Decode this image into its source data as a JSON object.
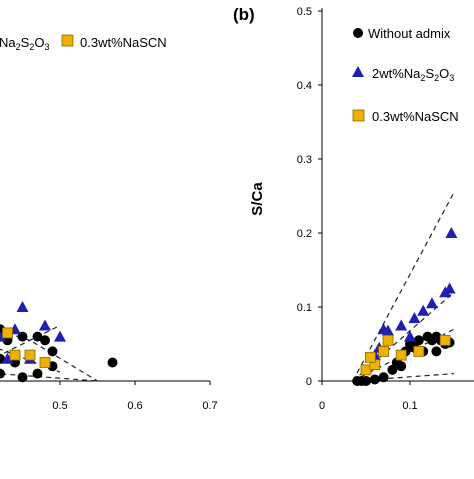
{
  "chart_data": [
    {
      "type": "scatter",
      "panel": "left (partially visible)",
      "title": "",
      "xlabel": "",
      "ylabel": "",
      "xlim": [
        0.35,
        0.7
      ],
      "ylim": [
        0,
        0.5
      ],
      "x_ticks": [
        "0.5",
        "0.6",
        "0.7"
      ],
      "x_tick_values": [
        0.5,
        0.6,
        0.7
      ],
      "legend": {
        "placement": "top",
        "entries": [
          "Na2S2O3",
          "0.3wt%NaSCN"
        ]
      },
      "series": [
        {
          "name": "Without admixture",
          "color": "#000000",
          "marker": "circle",
          "points": [
            [
              0.37,
              0.085
            ],
            [
              0.39,
              0.08
            ],
            [
              0.4,
              0.07
            ],
            [
              0.42,
              0.07
            ],
            [
              0.43,
              0.055
            ],
            [
              0.45,
              0.06
            ],
            [
              0.47,
              0.06
            ],
            [
              0.48,
              0.055
            ],
            [
              0.49,
              0.04
            ],
            [
              0.46,
              0.035
            ],
            [
              0.44,
              0.025
            ],
            [
              0.42,
              0.03
            ],
            [
              0.4,
              0.03
            ],
            [
              0.41,
              0.02
            ],
            [
              0.38,
              0.015
            ],
            [
              0.39,
              0.01
            ],
            [
              0.42,
              0.01
            ],
            [
              0.45,
              0.005
            ],
            [
              0.47,
              0.01
            ],
            [
              0.49,
              0.02
            ],
            [
              0.57,
              0.025
            ],
            [
              0.4,
              0.02
            ]
          ]
        },
        {
          "name": "2wt%Na2S2O3",
          "color": "#1f1fb4",
          "marker": "triangle",
          "points": [
            [
              0.45,
              0.1
            ],
            [
              0.48,
              0.075
            ],
            [
              0.44,
              0.07
            ],
            [
              0.5,
              0.06
            ],
            [
              0.42,
              0.06
            ],
            [
              0.37,
              0.065
            ],
            [
              0.39,
              0.045
            ],
            [
              0.43,
              0.03
            ],
            [
              0.46,
              0.03
            ],
            [
              0.38,
              0.03
            ],
            [
              0.41,
              0.045
            ],
            [
              0.36,
              0.075
            ]
          ]
        },
        {
          "name": "0.3wt%NaSCN",
          "color": "#f0b000",
          "marker": "square",
          "points": [
            [
              0.4,
              0.115
            ],
            [
              0.43,
              0.065
            ],
            [
              0.48,
              0.025
            ],
            [
              0.46,
              0.035
            ],
            [
              0.4,
              0.015
            ],
            [
              0.44,
              0.035
            ],
            [
              0.36,
              0.08
            ]
          ]
        }
      ],
      "envelopes": [
        [
          [
            0.35,
            0.09
          ],
          [
            0.46,
            0.055
          ],
          [
            0.55,
            0.0
          ]
        ],
        [
          [
            0.35,
            0.07
          ],
          [
            0.5,
            0.012
          ]
        ],
        [
          [
            0.35,
            0.015
          ],
          [
            0.55,
            0.0
          ]
        ],
        [
          [
            0.35,
            0.0
          ],
          [
            0.5,
            0.075
          ]
        ]
      ]
    },
    {
      "type": "scatter",
      "panel_label": "(b)",
      "title": "",
      "xlabel": "",
      "ylabel": "S/Ca",
      "xlim": [
        0,
        0.15
      ],
      "ylim": [
        0,
        0.5
      ],
      "x_ticks": [
        "0",
        "0.1"
      ],
      "x_tick_values": [
        0,
        0.1
      ],
      "y_ticks": [
        "0",
        "0.1",
        "0.2",
        "0.3",
        "0.4",
        "0.5"
      ],
      "y_tick_values": [
        0,
        0.1,
        0.2,
        0.3,
        0.4,
        0.5
      ],
      "legend": {
        "placement": "top-right",
        "entries": [
          "Without admix",
          "2wt%Na2S2O3",
          "0.3wt%NaSCN"
        ]
      },
      "series": [
        {
          "name": "Without admixture",
          "color": "#000000",
          "marker": "circle",
          "points": [
            [
              0.04,
              0.0
            ],
            [
              0.045,
              0.0
            ],
            [
              0.05,
              0.0
            ],
            [
              0.06,
              0.002
            ],
            [
              0.07,
              0.005
            ],
            [
              0.08,
              0.015
            ],
            [
              0.085,
              0.025
            ],
            [
              0.09,
              0.02
            ],
            [
              0.095,
              0.04
            ],
            [
              0.1,
              0.05
            ],
            [
              0.105,
              0.045
            ],
            [
              0.11,
              0.055
            ],
            [
              0.115,
              0.04
            ],
            [
              0.12,
              0.06
            ],
            [
              0.125,
              0.055
            ],
            [
              0.13,
              0.06
            ],
            [
              0.135,
              0.055
            ],
            [
              0.14,
              0.05
            ],
            [
              0.145,
              0.052
            ],
            [
              0.13,
              0.04
            ]
          ]
        },
        {
          "name": "2wt%Na2S2O3",
          "color": "#1f1fb4",
          "marker": "triangle",
          "points": [
            [
              0.06,
              0.035
            ],
            [
              0.065,
              0.045
            ],
            [
              0.07,
              0.07
            ],
            [
              0.075,
              0.068
            ],
            [
              0.09,
              0.075
            ],
            [
              0.105,
              0.085
            ],
            [
              0.115,
              0.095
            ],
            [
              0.125,
              0.105
            ],
            [
              0.14,
              0.12
            ],
            [
              0.145,
              0.125
            ],
            [
              0.147,
              0.2
            ],
            [
              0.1,
              0.06
            ]
          ]
        },
        {
          "name": "0.3wt%NaSCN",
          "color": "#f0b000",
          "marker": "square",
          "points": [
            [
              0.05,
              0.015
            ],
            [
              0.06,
              0.022
            ],
            [
              0.055,
              0.032
            ],
            [
              0.075,
              0.055
            ],
            [
              0.07,
              0.04
            ],
            [
              0.09,
              0.035
            ],
            [
              0.11,
              0.04
            ],
            [
              0.14,
              0.055
            ]
          ]
        }
      ],
      "envelopes": [
        [
          [
            0.035,
            0.0
          ],
          [
            0.15,
            0.255
          ]
        ],
        [
          [
            0.035,
            0.0
          ],
          [
            0.15,
            0.12
          ]
        ],
        [
          [
            0.035,
            0.0
          ],
          [
            0.15,
            0.07
          ]
        ],
        [
          [
            0.035,
            0.0
          ],
          [
            0.15,
            0.01
          ]
        ]
      ]
    }
  ],
  "left_legend": {
    "na2s2o3_text": "Na2S2O3",
    "nascn_text": "0.3wt%NaSCN"
  },
  "right_legend": {
    "without_text": "Without admix",
    "na2s2o3_prefix": "2wt%Na2S2O3",
    "nascn_text": "0.3wt%NaSCN"
  },
  "colors": {
    "circle": "#000000",
    "triangle": "#1f1fb4",
    "square": "#f0b000",
    "square_edge": "#8a6a00"
  }
}
